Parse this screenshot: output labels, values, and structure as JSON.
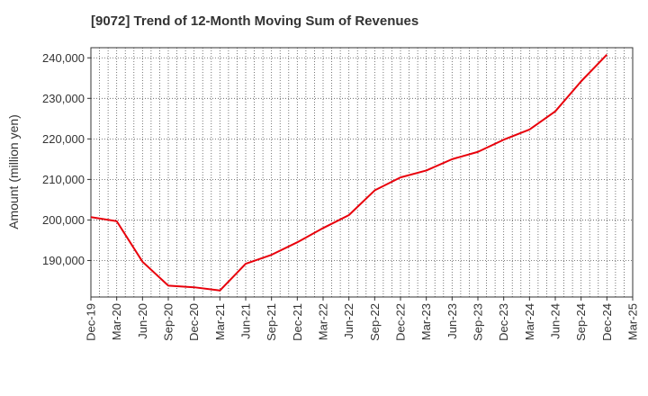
{
  "chart_data": {
    "type": "line",
    "title": "[9072]  Trend of 12-Month Moving Sum of Revenues",
    "xlabel": "",
    "ylabel": "Amount (million yen)",
    "ylim": [
      181000,
      242500
    ],
    "yticks": [
      190000,
      200000,
      210000,
      220000,
      230000,
      240000
    ],
    "ytick_labels": [
      "190,000",
      "200,000",
      "210,000",
      "220,000",
      "230,000",
      "240,000"
    ],
    "categories": [
      "Dec-19",
      "Mar-20",
      "Jun-20",
      "Sep-20",
      "Dec-20",
      "Mar-21",
      "Jun-21",
      "Sep-21",
      "Dec-21",
      "Mar-22",
      "Jun-22",
      "Sep-22",
      "Dec-22",
      "Mar-23",
      "Jun-23",
      "Sep-23",
      "Dec-23",
      "Mar-24",
      "Jun-24",
      "Sep-24",
      "Dec-24",
      "Mar-25"
    ],
    "series": [
      {
        "color": "#e8000b",
        "values": [
          200700,
          199700,
          189700,
          183800,
          183400,
          182600,
          189200,
          191400,
          194500,
          198000,
          201200,
          207300,
          210500,
          212200,
          215000,
          216800,
          219800,
          222300,
          226800,
          234200,
          240800,
          null
        ]
      }
    ],
    "grid": true,
    "grid_style": "dotted",
    "minor_x_grid": true
  }
}
